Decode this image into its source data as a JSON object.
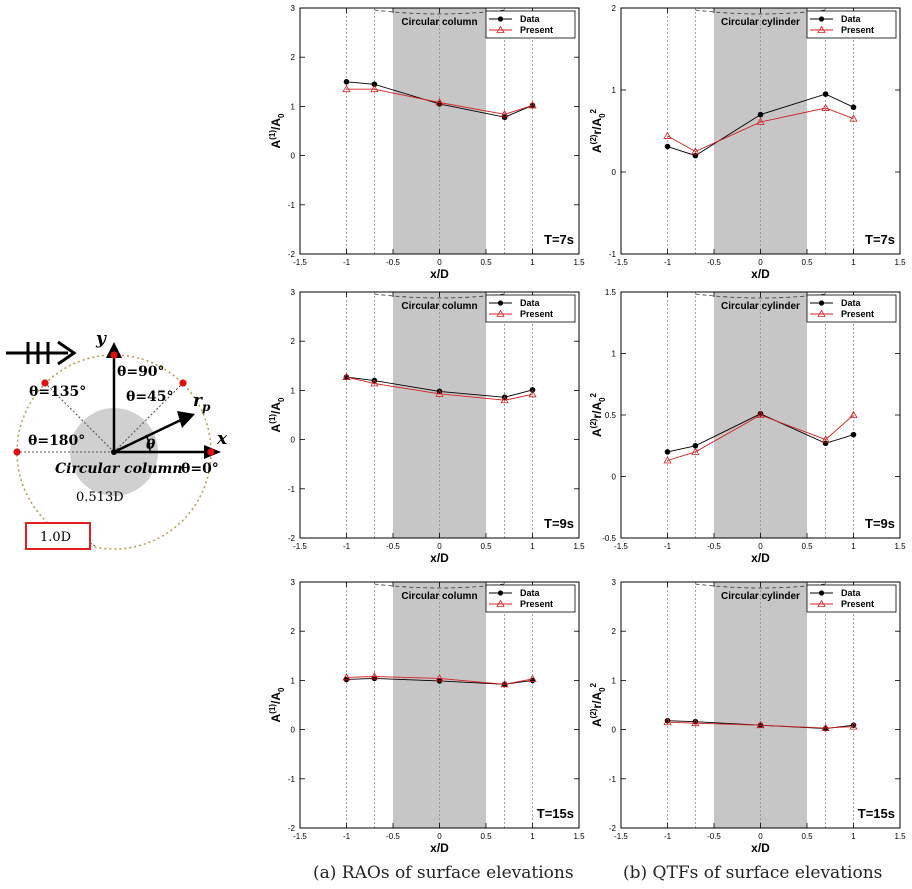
{
  "schematic": {
    "wave_label": "",
    "y_label": "y",
    "x_label": "x",
    "r_label": "r",
    "r_sub": "p",
    "theta_label": "θ",
    "theta_90": "θ=90°",
    "theta_135": "θ=135°",
    "theta_45": "θ=45°",
    "theta_180": "θ=180°",
    "column_label": "Circular column",
    "theta_0": "θ=0°",
    "inner_dim": "0.513D",
    "outer_dim": "1.0D"
  },
  "captions": {
    "left": "(a) RAOs of surface elevations",
    "right": "(b) QTFs of surface elevations"
  },
  "axis_text": {
    "xlabel": "x/D",
    "ylabel_rao": "A^(1)/A_0",
    "ylabel_qtf": "A^(2)r/A_0^2",
    "legend_data": "Data",
    "legend_present": "Present"
  },
  "colors": {
    "data": "#000000",
    "present": "#d42020",
    "shade": "#c6c6c6",
    "ring": "#b8a255",
    "disk": "#d0d0d0",
    "marker": "#e01010",
    "box": "#e02020"
  },
  "chart_data": [
    {
      "type": "line",
      "panel": "a",
      "annotation": "Circular column",
      "period_label": "T=7s",
      "x": [
        -1,
        -0.7,
        0,
        0.7,
        1
      ],
      "xlim": [
        -1.5,
        1.5
      ],
      "ylim": [
        -2,
        3
      ],
      "xticks": [
        -1.5,
        -1,
        -0.5,
        0,
        0.5,
        1,
        1.5
      ],
      "yticks": [
        -2,
        -1,
        0,
        1,
        2,
        3
      ],
      "shaded_x": [
        -0.5,
        0.5
      ],
      "series": [
        {
          "name": "Data",
          "values": [
            1.5,
            1.45,
            1.05,
            0.78,
            1.02
          ]
        },
        {
          "name": "Present",
          "values": [
            1.35,
            1.35,
            1.08,
            0.84,
            1.02
          ]
        }
      ],
      "grid": "dotted verticals at data x",
      "legend": "top-right"
    },
    {
      "type": "line",
      "panel": "b",
      "annotation": "Circular cylinder",
      "period_label": "T=7s",
      "x": [
        -1,
        -0.7,
        0,
        0.7,
        1
      ],
      "xlim": [
        -1.5,
        1.5
      ],
      "ylim": [
        -1,
        2
      ],
      "xticks": [
        -1.5,
        -1,
        -0.5,
        0,
        0.5,
        1,
        1.5
      ],
      "yticks": [
        -1,
        0,
        1,
        2
      ],
      "shaded_x": [
        -0.5,
        0.5
      ],
      "series": [
        {
          "name": "Data",
          "values": [
            0.31,
            0.2,
            0.7,
            0.95,
            0.79
          ]
        },
        {
          "name": "Present",
          "values": [
            0.44,
            0.25,
            0.61,
            0.78,
            0.65
          ]
        }
      ],
      "grid": "dotted verticals at data x",
      "legend": "top-right"
    },
    {
      "type": "line",
      "panel": "a",
      "annotation": "Circular column",
      "period_label": "T=9s",
      "x": [
        -1,
        -0.7,
        0,
        0.7,
        1
      ],
      "xlim": [
        -1.5,
        1.5
      ],
      "ylim": [
        -2,
        3
      ],
      "xticks": [
        -1.5,
        -1,
        -0.5,
        0,
        0.5,
        1,
        1.5
      ],
      "yticks": [
        -2,
        -1,
        0,
        1,
        2,
        3
      ],
      "shaded_x": [
        -0.5,
        0.5
      ],
      "series": [
        {
          "name": "Data",
          "values": [
            1.27,
            1.2,
            0.98,
            0.86,
            1.01
          ]
        },
        {
          "name": "Present",
          "values": [
            1.27,
            1.14,
            0.93,
            0.8,
            0.92
          ]
        }
      ],
      "grid": "dotted verticals at data x",
      "legend": "top-right"
    },
    {
      "type": "line",
      "panel": "b",
      "annotation": "Circular cylinder",
      "period_label": "T=9s",
      "x": [
        -1,
        -0.7,
        0,
        0.7,
        1
      ],
      "xlim": [
        -1.5,
        1.5
      ],
      "ylim": [
        -0.5,
        1.5
      ],
      "xticks": [
        -1.5,
        -1,
        -0.5,
        0,
        0.5,
        1,
        1.5
      ],
      "yticks": [
        -0.5,
        0,
        0.5,
        1,
        1.5
      ],
      "shaded_x": [
        -0.5,
        0.5
      ],
      "series": [
        {
          "name": "Data",
          "values": [
            0.2,
            0.25,
            0.51,
            0.27,
            0.34
          ]
        },
        {
          "name": "Present",
          "values": [
            0.13,
            0.2,
            0.5,
            0.3,
            0.5
          ]
        }
      ],
      "grid": "dotted verticals at data x",
      "legend": "top-right"
    },
    {
      "type": "line",
      "panel": "a",
      "annotation": "Circular column",
      "period_label": "T=15s",
      "x": [
        -1,
        -0.7,
        0,
        0.7,
        1
      ],
      "xlim": [
        -1.5,
        1.5
      ],
      "ylim": [
        -2,
        3
      ],
      "xticks": [
        -1.5,
        -1,
        -0.5,
        0,
        0.5,
        1,
        1.5
      ],
      "yticks": [
        -2,
        -1,
        0,
        1,
        2,
        3
      ],
      "shaded_x": [
        -0.5,
        0.5
      ],
      "series": [
        {
          "name": "Data",
          "values": [
            1.02,
            1.04,
            0.99,
            0.92,
            1.0
          ]
        },
        {
          "name": "Present",
          "values": [
            1.06,
            1.08,
            1.04,
            0.92,
            1.03
          ]
        }
      ],
      "grid": "dotted verticals at data x",
      "legend": "top-right"
    },
    {
      "type": "line",
      "panel": "b",
      "annotation": "Circular cylinder",
      "period_label": "T=15s",
      "x": [
        -1,
        -0.7,
        0,
        0.7,
        1
      ],
      "xlim": [
        -1.5,
        1.5
      ],
      "ylim": [
        -2,
        3
      ],
      "xticks": [
        -1.5,
        -1,
        -0.5,
        0,
        0.5,
        1,
        1.5
      ],
      "yticks": [
        -2,
        -1,
        0,
        1,
        2,
        3
      ],
      "shaded_x": [
        -0.5,
        0.5
      ],
      "series": [
        {
          "name": "Data",
          "values": [
            0.18,
            0.16,
            0.09,
            0.02,
            0.09
          ]
        },
        {
          "name": "Present",
          "values": [
            0.15,
            0.13,
            0.09,
            0.03,
            0.06
          ]
        }
      ],
      "grid": "dotted verticals at data x",
      "legend": "top-right"
    }
  ]
}
